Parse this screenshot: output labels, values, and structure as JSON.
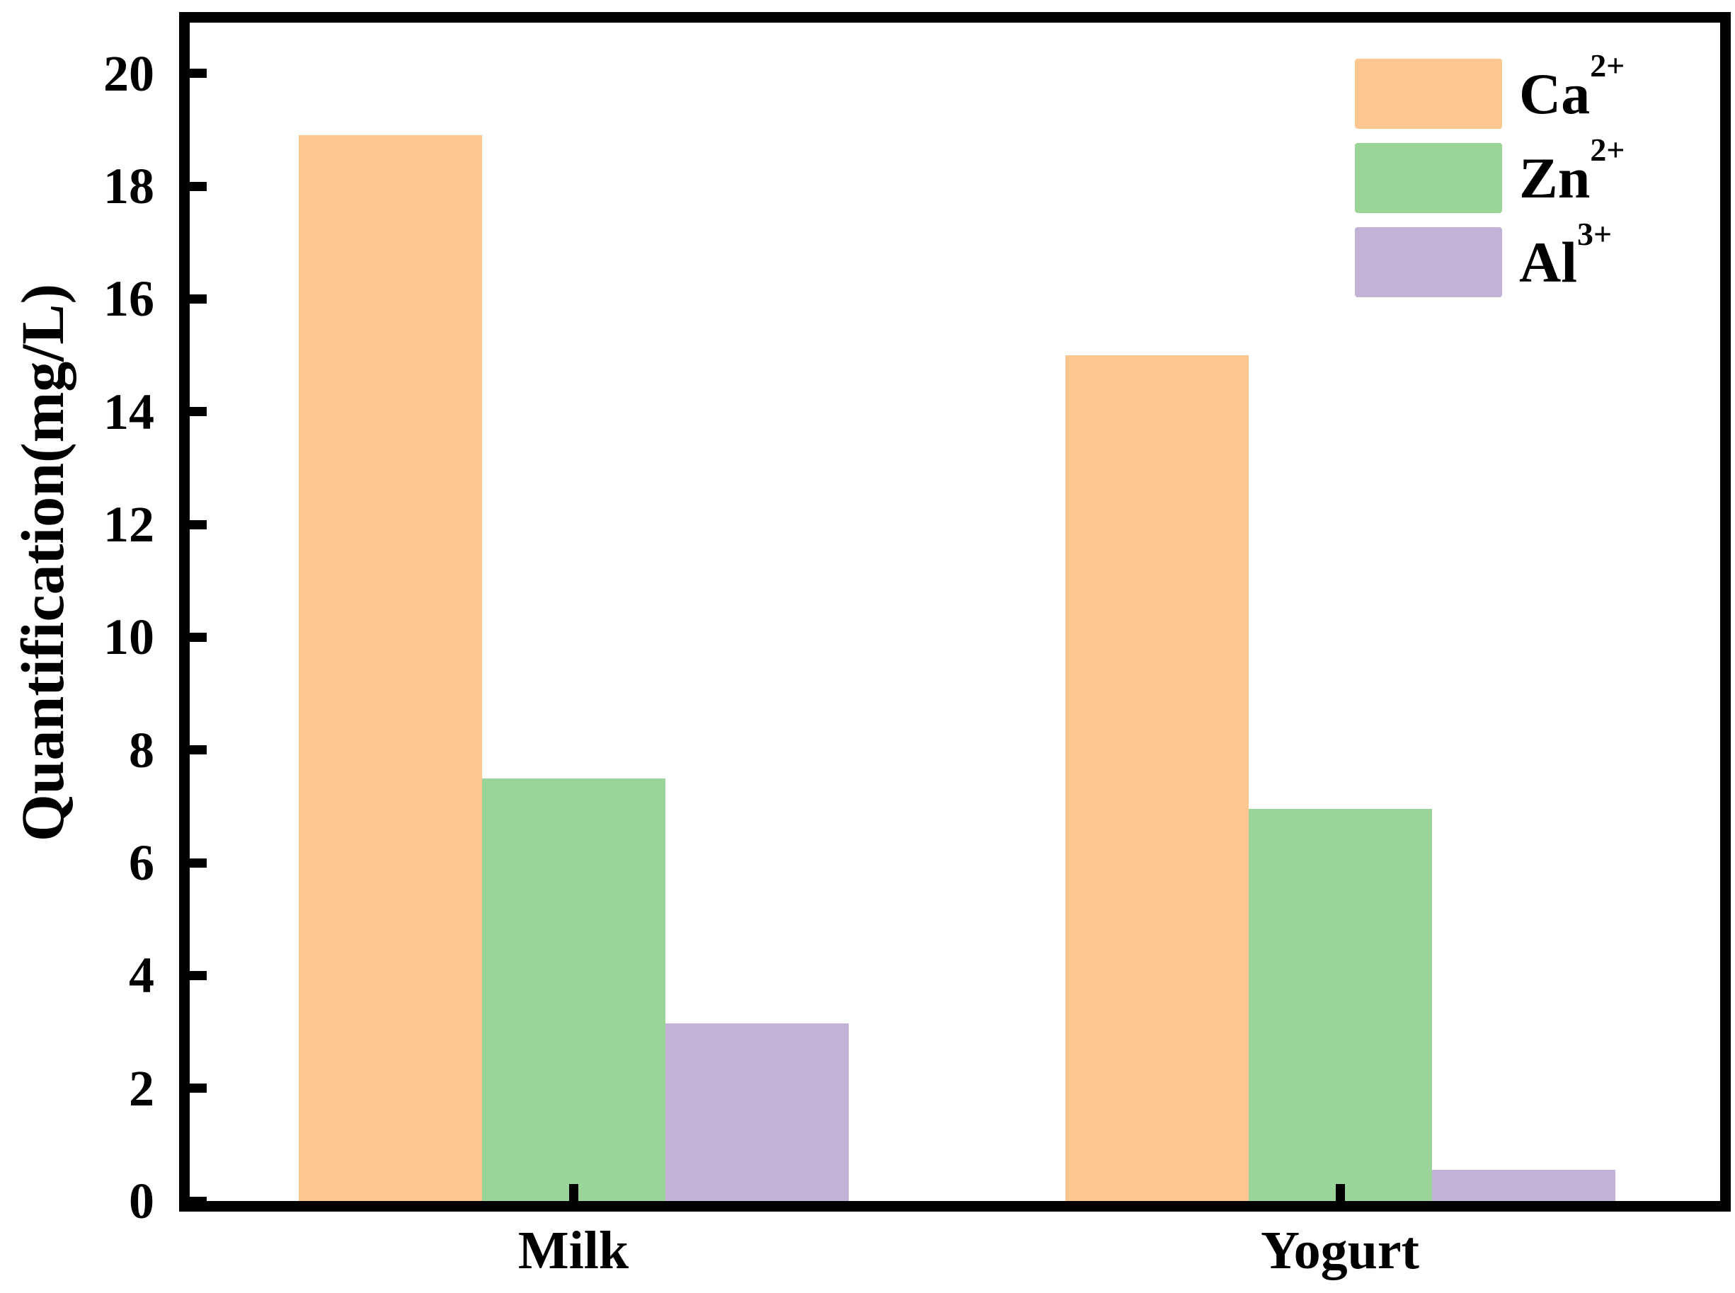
{
  "chart_data": {
    "type": "bar",
    "title": "",
    "xlabel": "",
    "ylabel": "Quantification(mg/L)",
    "categories": [
      "Milk",
      "Yogurt"
    ],
    "series": [
      {
        "name": "Ca",
        "name_sup": "2+",
        "color": "#FBC68F",
        "values": [
          18.9,
          15.0
        ]
      },
      {
        "name": "Zn",
        "name_sup": "2+",
        "color": "#9AD498",
        "values": [
          7.5,
          6.95
        ]
      },
      {
        "name": "Al",
        "name_sup": "3+",
        "color": "#C2B2D6",
        "values": [
          3.15,
          0.55
        ]
      }
    ],
    "ylim": [
      0,
      20.9
    ],
    "yticks": [
      0,
      2,
      4,
      6,
      8,
      10,
      12,
      14,
      16,
      18,
      20
    ],
    "ytick_labels": [
      "0",
      "2",
      "4",
      "6",
      "8",
      "10",
      "12",
      "14",
      "16",
      "18",
      "20"
    ],
    "grid": false,
    "legend_position": "upper right",
    "axis_color": "#000000",
    "tick_direction": "in"
  }
}
